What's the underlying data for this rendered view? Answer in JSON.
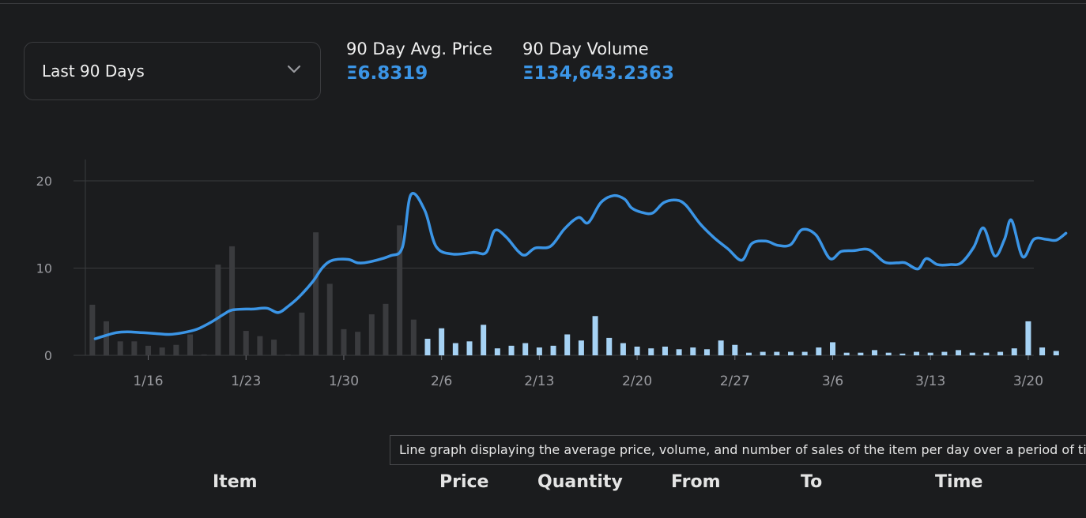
{
  "range_select": {
    "label": "Last 90 Days",
    "icon": "chevron-down-icon"
  },
  "stats": {
    "avg_price_label": "90 Day Avg. Price",
    "avg_price_value": "Ξ6.8319",
    "volume_label": "90 Day Volume",
    "volume_value": "Ξ134,643.2363"
  },
  "tooltip": "Line graph displaying the average price, volume, and number of sales of the item per day over a period of time",
  "table_headers": [
    "Item",
    "Price",
    "Quantity",
    "From",
    "To",
    "Time"
  ],
  "colors": {
    "line": "#3b95e6",
    "bar_recent": "#a6d2f4",
    "bar_old": "#3a3b3e",
    "grid": "#3a3b3e"
  },
  "chart_data": {
    "type": "bar",
    "x_ticks": [
      "1/16",
      "1/23",
      "1/30",
      "2/6",
      "2/13",
      "2/20",
      "2/27",
      "3/6",
      "3/13",
      "3/20"
    ],
    "x_tick_days": [
      4,
      11,
      18,
      25,
      32,
      39,
      46,
      53,
      60,
      67
    ],
    "y_ticks": [
      0,
      10,
      20
    ],
    "ylim": [
      0,
      21
    ],
    "xlim": [
      -0.5,
      67.4
    ],
    "volume_bars": [
      5.8,
      3.9,
      1.6,
      1.6,
      1.1,
      0.9,
      1.2,
      2.4,
      0.1,
      10.4,
      12.5,
      2.8,
      2.2,
      1.8,
      0.1,
      4.9,
      14.1,
      8.2,
      3.0,
      2.7,
      4.7,
      5.9,
      14.9,
      4.1,
      1.9,
      3.1,
      1.4,
      1.6,
      3.5,
      0.8,
      1.1,
      1.4,
      0.9,
      1.1,
      2.4,
      1.7,
      4.5,
      2.0,
      1.4,
      1.0,
      0.8,
      1.0,
      0.7,
      0.9,
      0.7,
      1.7,
      1.2,
      0.3,
      0.4,
      0.4,
      0.4,
      0.4,
      0.9,
      1.5,
      0.3,
      0.3,
      0.6,
      0.3,
      0.2,
      0.4,
      0.3,
      0.4,
      0.6,
      0.3,
      0.3,
      0.4,
      0.8,
      3.9,
      0.9,
      0.5
    ],
    "bar_old_count": 24,
    "avg_price_line": [
      [
        0.2,
        1.9
      ],
      [
        0.8,
        2.2
      ],
      [
        1.7,
        2.6
      ],
      [
        2.5,
        2.7
      ],
      [
        3.5,
        2.6
      ],
      [
        4.5,
        2.5
      ],
      [
        5.5,
        2.4
      ],
      [
        6.5,
        2.6
      ],
      [
        7.5,
        3.0
      ],
      [
        8.5,
        3.8
      ],
      [
        9.5,
        4.8
      ],
      [
        10.0,
        5.2
      ],
      [
        11.0,
        5.3
      ],
      [
        11.5,
        5.3
      ],
      [
        12.5,
        5.4
      ],
      [
        13.3,
        4.9
      ],
      [
        14.0,
        5.6
      ],
      [
        14.8,
        6.7
      ],
      [
        15.8,
        8.5
      ],
      [
        16.5,
        10.1
      ],
      [
        17.2,
        10.9
      ],
      [
        18.3,
        11.0
      ],
      [
        19.0,
        10.6
      ],
      [
        19.8,
        10.7
      ],
      [
        21.3,
        11.4
      ],
      [
        22.2,
        12.4
      ],
      [
        22.8,
        18.4
      ],
      [
        23.8,
        16.6
      ],
      [
        24.6,
        12.5
      ],
      [
        25.8,
        11.6
      ],
      [
        27.3,
        11.8
      ],
      [
        28.2,
        11.8
      ],
      [
        28.8,
        14.3
      ],
      [
        29.6,
        13.6
      ],
      [
        30.5,
        11.9
      ],
      [
        31.0,
        11.5
      ],
      [
        31.7,
        12.3
      ],
      [
        32.8,
        12.5
      ],
      [
        33.8,
        14.5
      ],
      [
        34.8,
        15.8
      ],
      [
        35.5,
        15.2
      ],
      [
        36.4,
        17.5
      ],
      [
        37.3,
        18.3
      ],
      [
        38.1,
        17.9
      ],
      [
        38.6,
        16.9
      ],
      [
        39.3,
        16.4
      ],
      [
        40.1,
        16.3
      ],
      [
        40.9,
        17.5
      ],
      [
        41.8,
        17.8
      ],
      [
        42.5,
        17.2
      ],
      [
        43.5,
        15.1
      ],
      [
        44.5,
        13.5
      ],
      [
        45.5,
        12.2
      ],
      [
        46.5,
        10.9
      ],
      [
        47.2,
        12.8
      ],
      [
        48.2,
        13.1
      ],
      [
        49.1,
        12.6
      ],
      [
        50.0,
        12.7
      ],
      [
        50.8,
        14.4
      ],
      [
        51.8,
        13.8
      ],
      [
        52.8,
        11.1
      ],
      [
        53.6,
        11.9
      ],
      [
        54.5,
        12.0
      ],
      [
        55.6,
        12.1
      ],
      [
        56.7,
        10.7
      ],
      [
        57.6,
        10.6
      ],
      [
        58.2,
        10.6
      ],
      [
        59.1,
        9.9
      ],
      [
        59.7,
        11.1
      ],
      [
        60.5,
        10.4
      ],
      [
        61.4,
        10.4
      ],
      [
        62.2,
        10.6
      ],
      [
        63.1,
        12.4
      ],
      [
        63.8,
        14.6
      ],
      [
        64.6,
        11.4
      ],
      [
        65.3,
        13.3
      ],
      [
        65.8,
        15.5
      ],
      [
        66.6,
        11.3
      ],
      [
        67.4,
        13.3
      ],
      [
        68.3,
        13.3
      ],
      [
        69.0,
        13.2
      ],
      [
        69.7,
        14.0
      ]
    ]
  }
}
